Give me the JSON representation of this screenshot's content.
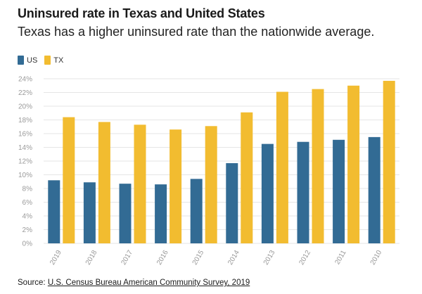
{
  "title": "Uninsured rate in Texas and United States",
  "subtitle": "Texas has a higher uninsured rate than the nationwide average.",
  "source": {
    "label": "Source:",
    "link_text": "U.S. Census Bureau American Community Survey, 2019"
  },
  "colors": {
    "us": "#326b94",
    "tx": "#f2bc30",
    "grid": "#e6e6e6",
    "axis_text": "#9a9a9a"
  },
  "chart_data": {
    "type": "bar",
    "categories": [
      "2019",
      "2018",
      "2017",
      "2016",
      "2015",
      "2014",
      "2013",
      "2012",
      "2011",
      "2010"
    ],
    "series": [
      {
        "name": "US",
        "values": [
          9.2,
          8.9,
          8.7,
          8.6,
          9.4,
          11.7,
          14.5,
          14.8,
          15.1,
          15.5
        ]
      },
      {
        "name": "TX",
        "values": [
          18.4,
          17.7,
          17.3,
          16.6,
          17.1,
          19.1,
          22.1,
          22.5,
          23.0,
          23.7
        ]
      }
    ],
    "yticks": [
      "0%",
      "2%",
      "4%",
      "6%",
      "8%",
      "10%",
      "12%",
      "14%",
      "16%",
      "18%",
      "20%",
      "22%",
      "24%"
    ],
    "ylim": [
      0,
      24
    ],
    "xlabel": "",
    "ylabel": "",
    "grid": true,
    "legend_position": "top-left"
  }
}
